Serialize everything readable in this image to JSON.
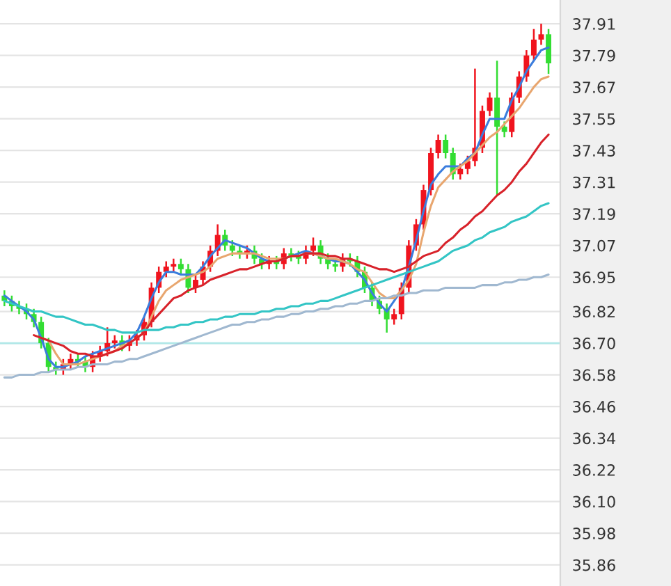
{
  "chart_data": {
    "type": "candlestick",
    "categories": [
      null,
      null,
      null,
      null,
      null,
      null,
      null,
      null,
      null,
      null,
      null,
      null,
      null,
      null,
      null,
      null,
      null,
      null,
      null,
      null,
      null,
      null,
      null,
      null,
      null,
      null,
      null,
      null,
      null,
      null,
      null,
      null,
      null,
      null,
      null,
      null,
      null,
      null,
      null,
      null,
      null,
      null,
      null,
      null,
      null,
      null,
      null,
      null,
      null,
      null,
      null,
      null,
      null,
      null,
      null,
      null,
      null,
      null,
      null,
      null,
      null,
      null,
      null,
      null,
      null,
      null,
      null,
      null,
      null,
      null,
      null,
      null,
      null,
      null,
      null
    ],
    "ohlc": [
      [
        36.88,
        36.9,
        36.84,
        36.86
      ],
      [
        36.86,
        36.88,
        36.82,
        36.84
      ],
      [
        36.84,
        36.86,
        36.81,
        36.83
      ],
      [
        36.83,
        36.85,
        36.79,
        36.81
      ],
      [
        36.81,
        36.83,
        36.76,
        36.78
      ],
      [
        36.78,
        36.8,
        36.68,
        36.7
      ],
      [
        36.7,
        36.72,
        36.59,
        36.61
      ],
      [
        36.61,
        36.63,
        36.58,
        36.6
      ],
      [
        36.6,
        36.64,
        36.58,
        36.62
      ],
      [
        36.62,
        36.66,
        36.6,
        36.64
      ],
      [
        36.64,
        36.66,
        36.61,
        36.63
      ],
      [
        36.63,
        36.65,
        36.59,
        36.61
      ],
      [
        36.61,
        36.67,
        36.59,
        36.65
      ],
      [
        36.65,
        36.69,
        36.63,
        36.67
      ],
      [
        36.67,
        36.76,
        36.65,
        36.7
      ],
      [
        36.7,
        36.73,
        36.68,
        36.71
      ],
      [
        36.71,
        36.73,
        36.67,
        36.69
      ],
      [
        36.69,
        36.73,
        36.67,
        36.71
      ],
      [
        36.71,
        36.75,
        36.69,
        36.73
      ],
      [
        36.73,
        36.8,
        36.71,
        36.78
      ],
      [
        36.78,
        36.93,
        36.76,
        36.91
      ],
      [
        36.91,
        36.99,
        36.89,
        36.97
      ],
      [
        36.97,
        37.01,
        36.95,
        36.99
      ],
      [
        36.99,
        37.02,
        36.97,
        37.0
      ],
      [
        37.0,
        37.02,
        36.96,
        36.98
      ],
      [
        36.98,
        37.0,
        36.89,
        36.91
      ],
      [
        36.91,
        36.96,
        36.89,
        36.94
      ],
      [
        36.94,
        37.01,
        36.92,
        36.99
      ],
      [
        36.99,
        37.07,
        36.97,
        37.05
      ],
      [
        37.05,
        37.15,
        37.03,
        37.11
      ],
      [
        37.11,
        37.13,
        37.05,
        37.07
      ],
      [
        37.07,
        37.09,
        37.03,
        37.05
      ],
      [
        37.05,
        37.07,
        37.02,
        37.04
      ],
      [
        37.04,
        37.07,
        37.02,
        37.05
      ],
      [
        37.05,
        37.07,
        37.0,
        37.02
      ],
      [
        37.02,
        37.04,
        36.98,
        37.0
      ],
      [
        37.0,
        37.03,
        36.98,
        37.01
      ],
      [
        37.01,
        37.03,
        36.98,
        37.0
      ],
      [
        37.0,
        37.06,
        36.98,
        37.04
      ],
      [
        37.04,
        37.06,
        37.01,
        37.03
      ],
      [
        37.03,
        37.05,
        37.0,
        37.02
      ],
      [
        37.02,
        37.07,
        37.0,
        37.05
      ],
      [
        37.05,
        37.1,
        37.03,
        37.07
      ],
      [
        37.07,
        37.09,
        37.0,
        37.02
      ],
      [
        37.02,
        37.04,
        36.98,
        37.0
      ],
      [
        37.0,
        37.02,
        36.97,
        36.99
      ],
      [
        36.99,
        37.04,
        36.97,
        37.02
      ],
      [
        37.02,
        37.04,
        36.99,
        37.01
      ],
      [
        37.01,
        37.03,
        36.95,
        36.97
      ],
      [
        36.97,
        36.99,
        36.89,
        36.91
      ],
      [
        36.91,
        36.93,
        36.84,
        36.86
      ],
      [
        36.86,
        36.88,
        36.81,
        36.83
      ],
      [
        36.83,
        36.85,
        36.74,
        36.79
      ],
      [
        36.79,
        36.83,
        36.77,
        36.81
      ],
      [
        36.81,
        36.93,
        36.79,
        36.91
      ],
      [
        36.91,
        37.09,
        36.89,
        37.07
      ],
      [
        37.07,
        37.17,
        37.05,
        37.15
      ],
      [
        37.15,
        37.3,
        37.13,
        37.28
      ],
      [
        37.28,
        37.44,
        37.26,
        37.42
      ],
      [
        37.42,
        37.49,
        37.4,
        37.47
      ],
      [
        37.47,
        37.49,
        37.4,
        37.42
      ],
      [
        37.42,
        37.44,
        37.32,
        37.34
      ],
      [
        37.34,
        37.38,
        37.32,
        37.36
      ],
      [
        37.36,
        37.41,
        37.34,
        37.39
      ],
      [
        37.39,
        37.74,
        37.37,
        37.44
      ],
      [
        37.44,
        37.6,
        37.42,
        37.58
      ],
      [
        37.58,
        37.65,
        37.56,
        37.63
      ],
      [
        37.63,
        37.77,
        37.26,
        37.52
      ],
      [
        37.52,
        37.54,
        37.48,
        37.5
      ],
      [
        37.5,
        37.65,
        37.48,
        37.63
      ],
      [
        37.63,
        37.73,
        37.61,
        37.71
      ],
      [
        37.71,
        37.81,
        37.69,
        37.79
      ],
      [
        37.79,
        37.89,
        37.77,
        37.85
      ],
      [
        37.85,
        37.91,
        37.83,
        37.87
      ],
      [
        37.87,
        37.89,
        37.72,
        37.76
      ]
    ],
    "colors": [
      "#33dd33",
      "#33dd33",
      "#33dd33",
      "#33dd33",
      "#33dd33",
      "#33dd33",
      "#33dd33",
      "#33dd33",
      "#f0141e",
      "#f0141e",
      "#33dd33",
      "#33dd33",
      "#f0141e",
      "#f0141e",
      "#f0141e",
      "#f0141e",
      "#33dd33",
      "#f0141e",
      "#f0141e",
      "#f0141e",
      "#f0141e",
      "#f0141e",
      "#f0141e",
      "#f0141e",
      "#33dd33",
      "#33dd33",
      "#f0141e",
      "#f0141e",
      "#f0141e",
      "#f0141e",
      "#33dd33",
      "#33dd33",
      "#33dd33",
      "#f0141e",
      "#33dd33",
      "#33dd33",
      "#f0141e",
      "#33dd33",
      "#f0141e",
      "#33dd33",
      "#33dd33",
      "#f0141e",
      "#f0141e",
      "#33dd33",
      "#33dd33",
      "#33dd33",
      "#f0141e",
      "#33dd33",
      "#33dd33",
      "#33dd33",
      "#33dd33",
      "#33dd33",
      "#33dd33",
      "#f0141e",
      "#f0141e",
      "#f0141e",
      "#f0141e",
      "#f0141e",
      "#f0141e",
      "#f0141e",
      "#33dd33",
      "#33dd33",
      "#f0141e",
      "#f0141e",
      "#f0141e",
      "#f0141e",
      "#f0141e",
      "#33dd33",
      "#33dd33",
      "#f0141e",
      "#f0141e",
      "#f0141e",
      "#f0141e",
      "#f0141e",
      "#33dd33"
    ],
    "series": [
      {
        "type": "line",
        "color": "#3b7ddd",
        "values": [
          36.88,
          36.86,
          36.84,
          36.82,
          36.79,
          36.72,
          36.64,
          36.61,
          36.61,
          36.62,
          36.63,
          36.65,
          36.66,
          36.67,
          36.68,
          36.69,
          36.7,
          36.71,
          36.74,
          36.8,
          36.87,
          36.93,
          36.97,
          36.97,
          36.96,
          36.96,
          36.96,
          36.99,
          37.03,
          37.06,
          37.09,
          37.08,
          37.07,
          37.06,
          37.04,
          37.02,
          37.01,
          37.01,
          37.02,
          37.03,
          37.04,
          37.05,
          37.04,
          37.03,
          37.02,
          37.01,
          37.01,
          37.0,
          36.97,
          36.94,
          36.89,
          36.85,
          36.82,
          36.86,
          36.9,
          36.99,
          37.09,
          37.2,
          37.3,
          37.34,
          37.37,
          37.37,
          37.37,
          37.4,
          37.42,
          37.49,
          37.55,
          37.55,
          37.55,
          37.62,
          37.67,
          37.73,
          37.77,
          37.81,
          37.82
        ]
      },
      {
        "type": "line",
        "color": "#e8a66f",
        "values": [
          null,
          null,
          null,
          null,
          null,
          null,
          36.71,
          36.66,
          36.62,
          36.62,
          36.62,
          36.63,
          36.64,
          36.65,
          36.66,
          36.67,
          36.69,
          36.7,
          36.72,
          36.74,
          36.8,
          36.86,
          36.9,
          36.92,
          36.94,
          36.95,
          36.96,
          36.97,
          36.99,
          37.02,
          37.03,
          37.04,
          37.04,
          37.04,
          37.04,
          37.03,
          37.02,
          37.02,
          37.02,
          37.03,
          37.03,
          37.04,
          37.04,
          37.03,
          37.02,
          37.02,
          37.01,
          37.0,
          36.98,
          36.97,
          36.93,
          36.89,
          36.87,
          36.87,
          36.9,
          36.94,
          37.0,
          37.12,
          37.22,
          37.29,
          37.32,
          37.35,
          37.37,
          37.39,
          37.42,
          37.45,
          37.48,
          37.5,
          37.53,
          37.56,
          37.59,
          37.63,
          37.67,
          37.7,
          37.71
        ]
      },
      {
        "type": "line",
        "color": "#d8222a",
        "values": [
          null,
          null,
          null,
          null,
          36.73,
          36.72,
          36.71,
          36.7,
          36.69,
          36.67,
          36.66,
          36.66,
          36.65,
          36.65,
          36.66,
          36.67,
          36.68,
          36.7,
          36.72,
          36.74,
          36.78,
          36.81,
          36.84,
          36.87,
          36.88,
          36.9,
          36.91,
          36.92,
          36.94,
          36.95,
          36.96,
          36.97,
          36.98,
          36.98,
          36.99,
          37.0,
          37.01,
          37.01,
          37.02,
          37.03,
          37.03,
          37.04,
          37.04,
          37.04,
          37.03,
          37.03,
          37.02,
          37.02,
          37.01,
          37.0,
          36.99,
          36.98,
          36.98,
          36.97,
          36.98,
          36.99,
          37.01,
          37.03,
          37.04,
          37.05,
          37.08,
          37.1,
          37.13,
          37.15,
          37.18,
          37.2,
          37.23,
          37.26,
          37.28,
          37.31,
          37.35,
          37.38,
          37.42,
          37.46,
          37.49
        ]
      },
      {
        "type": "line",
        "color": "#33c5c5",
        "values": [
          36.86,
          36.85,
          36.84,
          36.83,
          36.82,
          36.82,
          36.81,
          36.8,
          36.8,
          36.79,
          36.78,
          36.77,
          36.77,
          36.76,
          36.75,
          36.75,
          36.74,
          36.74,
          36.74,
          36.75,
          36.75,
          36.75,
          36.76,
          36.76,
          36.77,
          36.77,
          36.78,
          36.78,
          36.79,
          36.79,
          36.8,
          36.8,
          36.81,
          36.81,
          36.81,
          36.82,
          36.82,
          36.83,
          36.83,
          36.84,
          36.84,
          36.85,
          36.85,
          36.86,
          36.86,
          36.87,
          36.88,
          36.89,
          36.9,
          36.91,
          36.92,
          36.93,
          36.94,
          36.95,
          36.96,
          36.97,
          36.98,
          36.99,
          37.0,
          37.01,
          37.03,
          37.05,
          37.06,
          37.07,
          37.09,
          37.1,
          37.12,
          37.13,
          37.14,
          37.16,
          37.17,
          37.18,
          37.2,
          37.22,
          37.23
        ]
      },
      {
        "type": "line",
        "color": "#a0b8d0",
        "values": [
          36.57,
          36.57,
          36.58,
          36.58,
          36.58,
          36.59,
          36.59,
          36.6,
          36.6,
          36.6,
          36.61,
          36.61,
          36.62,
          36.62,
          36.62,
          36.63,
          36.63,
          36.64,
          36.64,
          36.65,
          36.66,
          36.67,
          36.68,
          36.69,
          36.7,
          36.71,
          36.72,
          36.73,
          36.74,
          36.75,
          36.76,
          36.77,
          36.77,
          36.78,
          36.78,
          36.79,
          36.79,
          36.8,
          36.8,
          36.81,
          36.81,
          36.82,
          36.82,
          36.83,
          36.83,
          36.84,
          36.84,
          36.85,
          36.85,
          36.86,
          36.86,
          36.87,
          36.87,
          36.88,
          36.88,
          36.89,
          36.89,
          36.9,
          36.9,
          36.9,
          36.91,
          36.91,
          36.91,
          36.91,
          36.91,
          36.92,
          36.92,
          36.92,
          36.93,
          36.93,
          36.94,
          36.94,
          36.95,
          36.95,
          36.96
        ]
      }
    ],
    "ylim": [
      35.78,
      38.0
    ],
    "yticks": [
      37.91,
      37.79,
      37.67,
      37.55,
      37.43,
      37.31,
      37.19,
      37.07,
      36.95,
      36.82,
      {
        "value": 36.7,
        "label": "36.70"
      },
      36.58,
      36.46,
      36.34,
      36.22,
      {
        "value": 36.1,
        "label": "36.10"
      },
      35.98,
      35.86
    ],
    "ref_lines": [
      {
        "axis": "y",
        "value": 36.7,
        "color": "#b0e8e8"
      }
    ],
    "grid": "y",
    "tick_labels": "y"
  }
}
